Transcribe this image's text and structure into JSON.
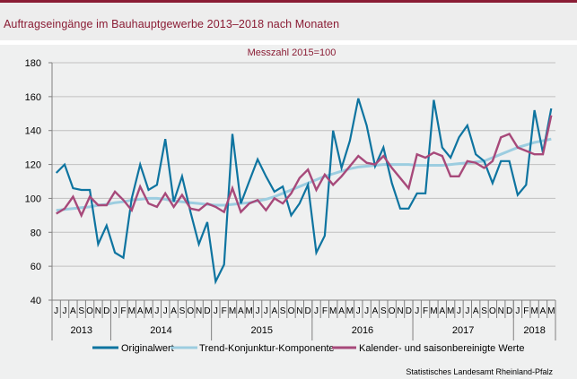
{
  "header": {
    "title": "Auftragseingänge im Bauhauptgewerbe 2013–2018 nach Monaten"
  },
  "source": "Statistisches Landesamt Rheinland-Pfalz",
  "colors": {
    "brand": "#8a1c34",
    "original": "#0e74a0",
    "trend": "#9ccde0",
    "adjusted": "#a7497a",
    "grid": "#c0c0c0",
    "axis": "#808080"
  },
  "chart_data": {
    "type": "line",
    "title": "Auftragseingänge im Bauhauptgewerbe 2013–2018 nach Monaten",
    "subtitle": "Messzahl 2015=100",
    "xlabel": "",
    "ylabel": "",
    "ylim": [
      40,
      180
    ],
    "yticks": [
      "40",
      "60",
      "80",
      "100",
      "120",
      "140",
      "160",
      "180"
    ],
    "grid": true,
    "legend_position": "bottom",
    "month_labels": [
      "J",
      "J",
      "A",
      "S",
      "O",
      "N",
      "D",
      "J",
      "F",
      "M",
      "A",
      "M",
      "J",
      "J",
      "A",
      "S",
      "O",
      "N",
      "D",
      "J",
      "F",
      "M",
      "A",
      "M",
      "J",
      "J",
      "A",
      "S",
      "O",
      "N",
      "D",
      "J",
      "F",
      "M",
      "A",
      "M",
      "J",
      "J",
      "A",
      "S",
      "O",
      "N",
      "D",
      "J",
      "F",
      "M",
      "A",
      "M",
      "J",
      "J",
      "A",
      "S",
      "O",
      "N",
      "D",
      "J",
      "F",
      "M",
      "A",
      "M"
    ],
    "years": [
      {
        "label": "2013",
        "months": 7
      },
      {
        "label": "2014",
        "months": 12
      },
      {
        "label": "2015",
        "months": 12
      },
      {
        "label": "2016",
        "months": 12
      },
      {
        "label": "2017",
        "months": 12
      },
      {
        "label": "2018",
        "months": 5
      }
    ],
    "series": [
      {
        "name": "Originalwert",
        "values": [
          115,
          120,
          106,
          105,
          105,
          73,
          84,
          68,
          65,
          100,
          120,
          105,
          108,
          135,
          98,
          113,
          92,
          73,
          86,
          51,
          61,
          138,
          97,
          110,
          123,
          113,
          104,
          107,
          90,
          97,
          108,
          68,
          78,
          140,
          118,
          134,
          159,
          143,
          119,
          130,
          109,
          94,
          94,
          103,
          103,
          158,
          130,
          124,
          136,
          143,
          126,
          122,
          109,
          122,
          122,
          102,
          108,
          152,
          127,
          153
        ]
      },
      {
        "name": "Trend-Konjunktur-Komponente",
        "values": [
          93,
          93.5,
          94,
          94.5,
          95,
          96,
          96.5,
          97.5,
          98,
          99,
          99.5,
          100,
          100,
          99.5,
          98.5,
          98,
          97.5,
          97,
          96.5,
          96,
          96,
          96.5,
          97,
          97.5,
          98.5,
          99.5,
          101,
          103,
          105,
          107,
          109,
          111,
          113,
          114.5,
          116,
          117.5,
          118.5,
          119,
          119.5,
          120,
          120,
          120,
          120,
          119.5,
          119.5,
          119.5,
          119.5,
          120,
          120.5,
          121,
          121.5,
          122,
          124,
          126,
          128,
          130,
          131.5,
          133,
          134,
          135
        ]
      },
      {
        "name": "Kalender- und saisonbereinigte Werte",
        "values": [
          91,
          94,
          101,
          90,
          101,
          96,
          96,
          104,
          99,
          93,
          107,
          97,
          95,
          103,
          95,
          102,
          94,
          93,
          97,
          95,
          92,
          106,
          92,
          97,
          99,
          93,
          100,
          97,
          103,
          112,
          117,
          105,
          114,
          108,
          113,
          119,
          125,
          121,
          120,
          125,
          118,
          112,
          106,
          126,
          124,
          127,
          125,
          113,
          113,
          122,
          121,
          118,
          122,
          136,
          138,
          130,
          128,
          126,
          126,
          149
        ]
      }
    ]
  }
}
